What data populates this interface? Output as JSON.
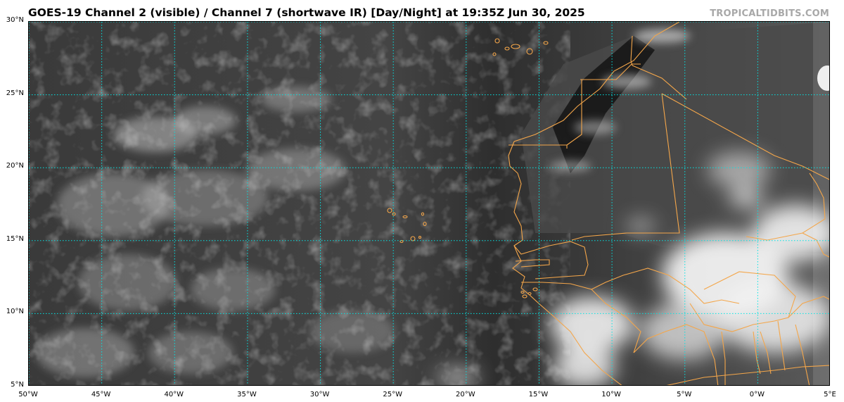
{
  "header": {
    "title": "GOES-19 Channel 2 (visible) / Channel 7 (shortwave IR) [Day/Night] at 19:35Z Jun 30, 2025",
    "brand": "TROPICALTIDBITS.COM"
  },
  "map": {
    "extent": {
      "lon_min": -50,
      "lon_max": 5,
      "lat_min": 5,
      "lat_max": 30
    },
    "gridline_color": "#00e5e5",
    "border_color": "#f4a64a",
    "lat_ticks": [
      {
        "value": 30,
        "label": "30°N"
      },
      {
        "value": 25,
        "label": "25°N"
      },
      {
        "value": 20,
        "label": "20°N"
      },
      {
        "value": 15,
        "label": "15°N"
      },
      {
        "value": 10,
        "label": "10°N"
      },
      {
        "value": 5,
        "label": "5°N"
      }
    ],
    "lon_ticks": [
      {
        "value": -50,
        "label": "50°W"
      },
      {
        "value": -45,
        "label": "45°W"
      },
      {
        "value": -40,
        "label": "40°W"
      },
      {
        "value": -35,
        "label": "35°W"
      },
      {
        "value": -30,
        "label": "30°W"
      },
      {
        "value": -25,
        "label": "25°W"
      },
      {
        "value": -20,
        "label": "20°W"
      },
      {
        "value": -15,
        "label": "15°W"
      },
      {
        "value": -10,
        "label": "10°W"
      },
      {
        "value": -5,
        "label": "5°W"
      },
      {
        "value": 0,
        "label": "0°W"
      },
      {
        "value": 5,
        "label": "5°E"
      }
    ]
  }
}
